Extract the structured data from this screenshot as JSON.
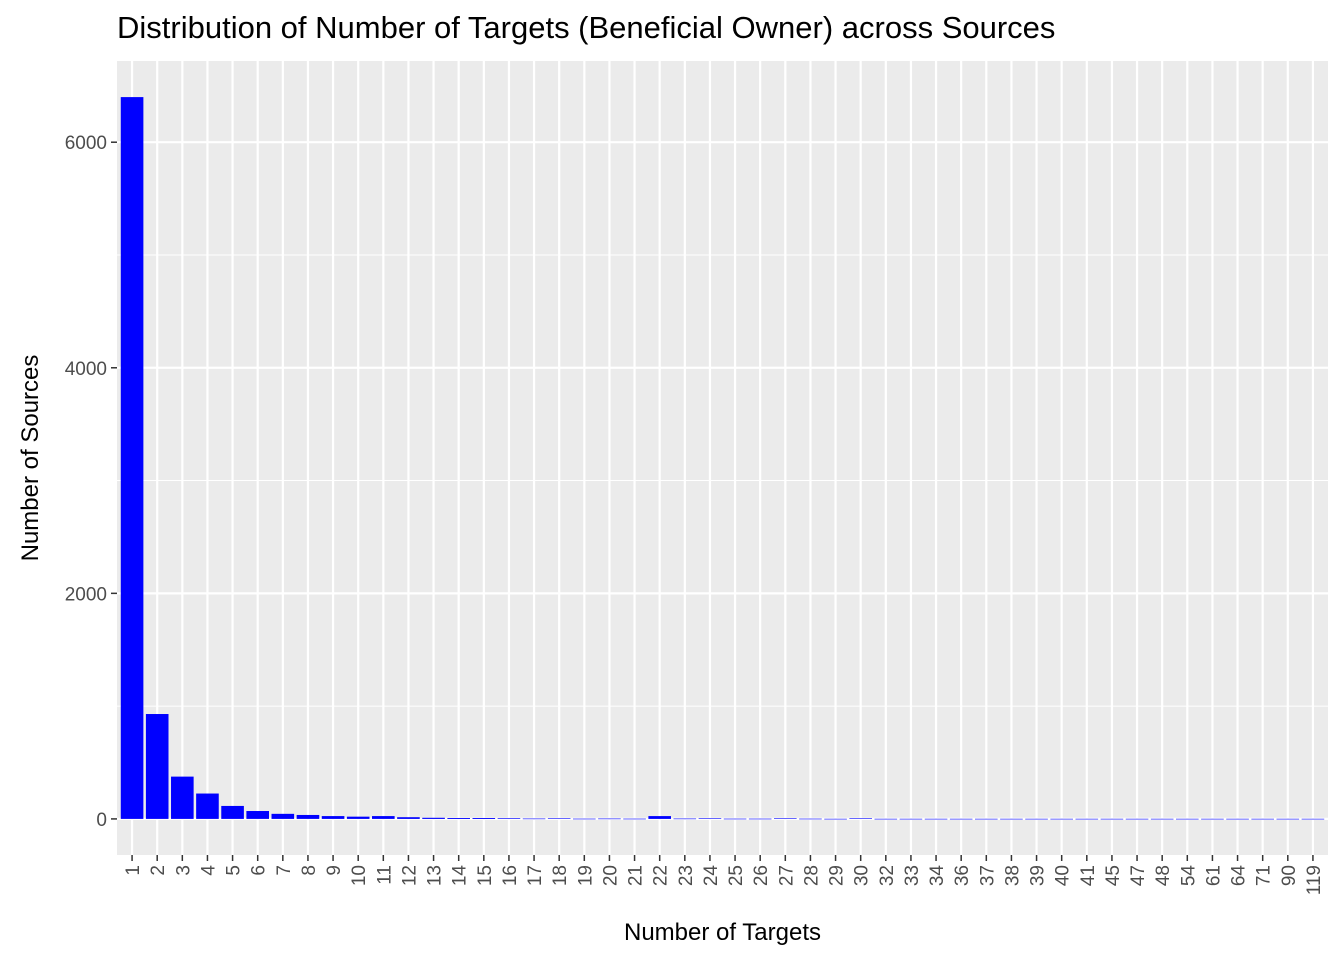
{
  "chart_data": {
    "type": "bar",
    "title": "Distribution of Number of Targets (Beneficial Owner) across Sources",
    "xlabel": "Number of Targets",
    "ylabel": "Number of Sources",
    "categories": [
      "1",
      "2",
      "3",
      "4",
      "5",
      "6",
      "7",
      "8",
      "9",
      "10",
      "11",
      "12",
      "13",
      "14",
      "15",
      "16",
      "17",
      "18",
      "19",
      "20",
      "21",
      "22",
      "23",
      "24",
      "25",
      "26",
      "27",
      "28",
      "29",
      "30",
      "32",
      "33",
      "34",
      "36",
      "37",
      "38",
      "39",
      "40",
      "41",
      "45",
      "47",
      "48",
      "54",
      "61",
      "64",
      "71",
      "90",
      "119"
    ],
    "values": [
      6400,
      930,
      375,
      225,
      115,
      70,
      45,
      35,
      25,
      20,
      25,
      15,
      10,
      8,
      8,
      6,
      3,
      5,
      2,
      3,
      2,
      25,
      3,
      5,
      2,
      2,
      5,
      2,
      1,
      5,
      1,
      1,
      1,
      1,
      1,
      1,
      1,
      1,
      1,
      1,
      1,
      1,
      1,
      1,
      1,
      1,
      1,
      1
    ],
    "yticks": [
      0,
      2000,
      4000,
      6000
    ],
    "ylim": [
      -320,
      6720
    ],
    "grid": true,
    "legend": "none",
    "colors": {
      "bar": "#0000ff",
      "panel": "#ebebeb",
      "grid": "#ffffff"
    }
  }
}
